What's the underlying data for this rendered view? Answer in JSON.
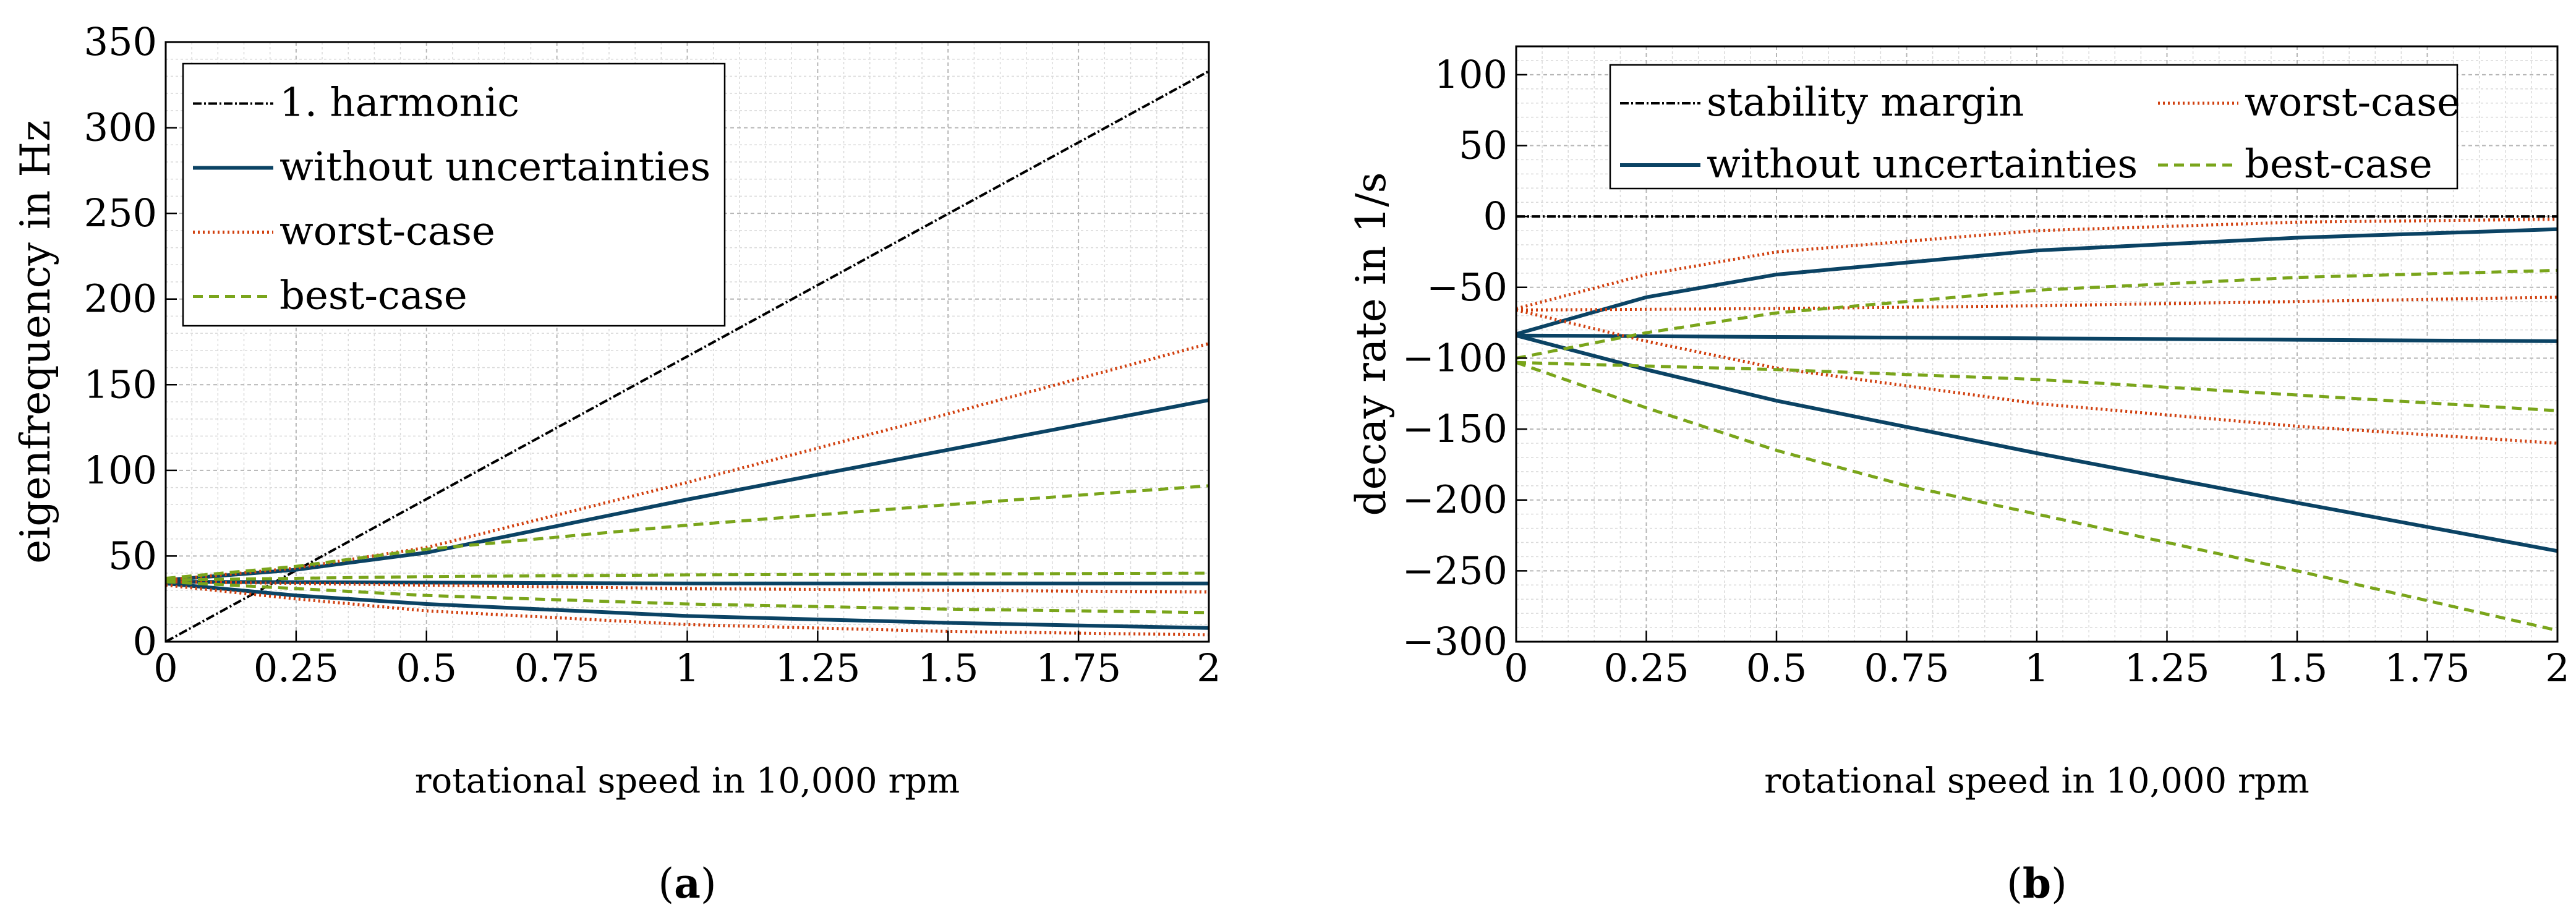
{
  "colors": {
    "harmonic": "#000000",
    "without": "#0b4364",
    "worst": "#d1400f",
    "best": "#7aa51b",
    "grid_major": "#b6b6b6",
    "grid_minor": "#dadada"
  },
  "chart_data": [
    {
      "type": "line",
      "panel": "(a)",
      "panel_letter": "a",
      "xlabel": "rotational speed in 10,000 rpm",
      "ylabel": "eigenfrequency in Hz",
      "xlim": [
        0,
        2
      ],
      "ylim": [
        0,
        350
      ],
      "xticks": [
        0,
        0.25,
        0.5,
        0.75,
        1,
        1.25,
        1.5,
        1.75,
        2
      ],
      "xtick_labels": [
        "0",
        "0.25",
        "0.5",
        "0.75",
        "1",
        "1.25",
        "1.5",
        "1.75",
        "2"
      ],
      "yticks": [
        0,
        50,
        100,
        150,
        200,
        250,
        300,
        350
      ],
      "ytick_labels": [
        "0",
        "50",
        "100",
        "150",
        "200",
        "250",
        "300",
        "350"
      ],
      "legend_position": "top-left",
      "legend": [
        {
          "name": "1. harmonic",
          "style": "harmonic"
        },
        {
          "name": "without uncertainties",
          "style": "without"
        },
        {
          "name": "worst-case",
          "style": "worst"
        },
        {
          "name": "best-case",
          "style": "best"
        }
      ],
      "series": [
        {
          "name": "1. harmonic",
          "style": "harmonic",
          "x": [
            0,
            2
          ],
          "y": [
            0,
            333
          ]
        },
        {
          "name": "without uncertainties",
          "style": "without",
          "x": [
            0,
            0.25,
            0.5,
            1,
            1.5,
            2
          ],
          "y": [
            36,
            42,
            52,
            83,
            112,
            141
          ]
        },
        {
          "name": "without uncertainties",
          "style": "without",
          "x": [
            0,
            0.5,
            1,
            1.5,
            2
          ],
          "y": [
            35,
            34.5,
            34,
            34,
            34
          ]
        },
        {
          "name": "without uncertainties",
          "style": "without",
          "x": [
            0,
            0.25,
            0.5,
            1,
            1.5,
            2
          ],
          "y": [
            34,
            27,
            22,
            15,
            11,
            8
          ]
        },
        {
          "name": "worst-case",
          "style": "worst",
          "x": [
            0,
            0.25,
            0.5,
            1,
            1.5,
            2
          ],
          "y": [
            36,
            43,
            55,
            93,
            133,
            174
          ]
        },
        {
          "name": "worst-case",
          "style": "worst",
          "x": [
            0,
            0.5,
            1,
            1.5,
            2
          ],
          "y": [
            35,
            33,
            31,
            30,
            29
          ]
        },
        {
          "name": "worst-case",
          "style": "worst",
          "x": [
            0,
            0.25,
            0.5,
            1,
            1.5,
            2
          ],
          "y": [
            33,
            25,
            18,
            10,
            6,
            4
          ]
        },
        {
          "name": "best-case",
          "style": "best",
          "x": [
            0,
            0.25,
            0.5,
            1,
            1.5,
            2
          ],
          "y": [
            37,
            44,
            54,
            68,
            80,
            91
          ]
        },
        {
          "name": "best-case",
          "style": "best",
          "x": [
            0,
            0.5,
            1,
            1.5,
            2
          ],
          "y": [
            36,
            38,
            39,
            39.5,
            40
          ]
        },
        {
          "name": "best-case",
          "style": "best",
          "x": [
            0,
            0.25,
            0.5,
            1,
            1.5,
            2
          ],
          "y": [
            35,
            31,
            27,
            22,
            19,
            17
          ]
        }
      ]
    },
    {
      "type": "line",
      "panel": "(b)",
      "panel_letter": "b",
      "xlabel": "rotational speed in 10,000 rpm",
      "ylabel": "decay rate in 1/s",
      "xlim": [
        0,
        2
      ],
      "ylim": [
        -300,
        120
      ],
      "xticks": [
        0,
        0.25,
        0.5,
        0.75,
        1,
        1.25,
        1.5,
        1.75,
        2
      ],
      "xtick_labels": [
        "0",
        "0.25",
        "0.5",
        "0.75",
        "1",
        "1.25",
        "1.5",
        "1.75",
        "2"
      ],
      "yticks": [
        -300,
        -250,
        -200,
        -150,
        -100,
        -50,
        0,
        50,
        100
      ],
      "ytick_labels": [
        "−300",
        "−250",
        "−200",
        "−150",
        "−100",
        "−50",
        "0",
        "50",
        "100"
      ],
      "legend_position": "top",
      "legend": [
        {
          "name": "stability margin",
          "style": "harmonic"
        },
        {
          "name": "worst-case",
          "style": "worst"
        },
        {
          "name": "without uncertainties",
          "style": "without"
        },
        {
          "name": "best-case",
          "style": "best"
        }
      ],
      "series": [
        {
          "name": "stability margin",
          "style": "harmonic",
          "x": [
            0,
            2
          ],
          "y": [
            0,
            0
          ]
        },
        {
          "name": "without uncertainties",
          "style": "without",
          "x": [
            0,
            0.25,
            0.5,
            1,
            1.5,
            2
          ],
          "y": [
            -83,
            -57,
            -41,
            -24,
            -15,
            -9
          ]
        },
        {
          "name": "without uncertainties",
          "style": "without",
          "x": [
            0,
            0.5,
            1,
            1.5,
            2
          ],
          "y": [
            -84,
            -85,
            -86,
            -87,
            -88
          ]
        },
        {
          "name": "without uncertainties",
          "style": "without",
          "x": [
            0,
            0.25,
            0.5,
            1,
            1.5,
            2
          ],
          "y": [
            -84,
            -108,
            -130,
            -167,
            -202,
            -236
          ]
        },
        {
          "name": "worst-case",
          "style": "worst",
          "x": [
            0,
            0.25,
            0.5,
            1,
            1.5,
            2
          ],
          "y": [
            -65,
            -41,
            -25,
            -10,
            -4,
            -2
          ]
        },
        {
          "name": "worst-case",
          "style": "worst",
          "x": [
            0,
            0.5,
            1,
            1.5,
            2
          ],
          "y": [
            -66,
            -65,
            -63,
            -60,
            -57
          ]
        },
        {
          "name": "worst-case",
          "style": "worst",
          "x": [
            0,
            0.25,
            0.5,
            1,
            1.5,
            2
          ],
          "y": [
            -66,
            -88,
            -107,
            -132,
            -148,
            -160
          ]
        },
        {
          "name": "best-case",
          "style": "best",
          "x": [
            0,
            0.25,
            0.5,
            1,
            1.5,
            2
          ],
          "y": [
            -100,
            -82,
            -68,
            -52,
            -43,
            -38
          ]
        },
        {
          "name": "best-case",
          "style": "best",
          "x": [
            0,
            0.5,
            1,
            1.5,
            2
          ],
          "y": [
            -103,
            -108,
            -115,
            -126,
            -137
          ]
        },
        {
          "name": "best-case",
          "style": "best",
          "x": [
            0,
            0.25,
            0.5,
            0.75,
            1,
            1.5,
            2
          ],
          "y": [
            -103,
            -135,
            -165,
            -190,
            -210,
            -250,
            -292
          ]
        }
      ]
    }
  ]
}
